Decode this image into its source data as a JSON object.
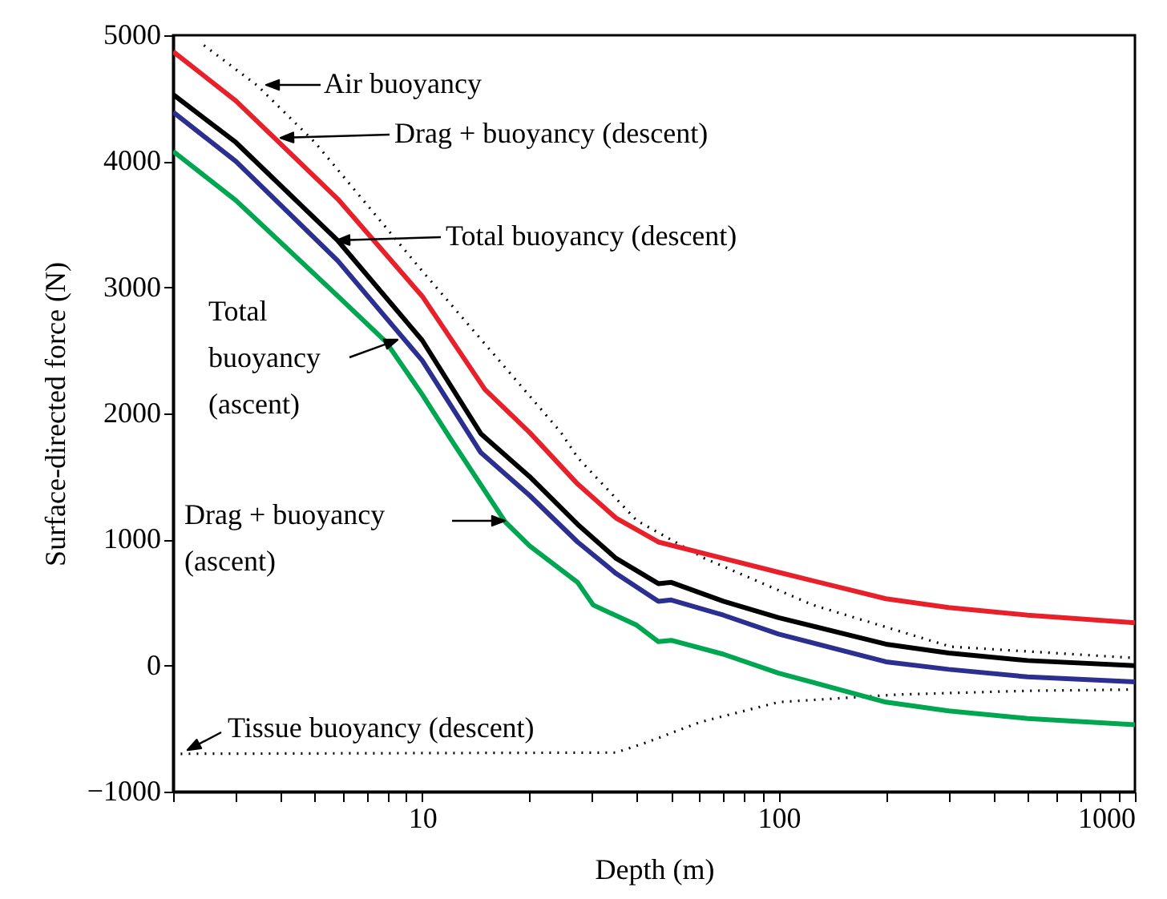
{
  "chart_data": {
    "type": "line",
    "xlabel": "Depth (m)",
    "ylabel": "Surface-directed force (N)",
    "log": "x",
    "xlim": [
      2,
      1000
    ],
    "ylim": [
      -1000,
      5000
    ],
    "xticks": [
      {
        "value": 2,
        "label": null
      },
      {
        "value": 3,
        "label": null
      },
      {
        "value": 4,
        "label": null
      },
      {
        "value": 5,
        "label": null
      },
      {
        "value": 6,
        "label": null
      },
      {
        "value": 7,
        "label": null
      },
      {
        "value": 8,
        "label": null
      },
      {
        "value": 9,
        "label": null
      },
      10,
      {
        "value": 20,
        "label": null
      },
      {
        "value": 30,
        "label": null
      },
      {
        "value": 40,
        "label": null
      },
      {
        "value": 50,
        "label": null
      },
      {
        "value": 60,
        "label": null
      },
      {
        "value": 70,
        "label": null
      },
      {
        "value": 80,
        "label": null
      },
      {
        "value": 90,
        "label": null
      },
      100,
      {
        "value": 200,
        "label": null
      },
      {
        "value": 300,
        "label": null
      },
      {
        "value": 400,
        "label": null
      },
      {
        "value": 500,
        "label": null
      },
      {
        "value": 600,
        "label": null
      },
      {
        "value": 700,
        "label": null
      },
      {
        "value": 800,
        "label": null
      },
      {
        "value": 900,
        "label": null
      },
      1000
    ],
    "yticks": [
      {
        "value": -1000,
        "label": "−1000"
      },
      0,
      1000,
      2000,
      3000,
      4000,
      5000
    ],
    "series": [
      {
        "color": "#000000",
        "line_style": "dotted",
        "x": [
          2.44,
          3.45,
          5,
          10,
          24.5,
          27.3,
          40,
          62,
          125,
          304,
          1000
        ],
        "values": [
          4920,
          4600,
          4150,
          3130,
          1850,
          1650,
          1150,
          850,
          480,
          150,
          60
        ]
      },
      {
        "color": "#000000",
        "line_style": "dotted",
        "x": [
          2.1,
          35,
          42.6,
          60,
          100,
          216,
          500,
          1000
        ],
        "values": [
          -700,
          -690,
          -610,
          -450,
          -290,
          -230,
          -200,
          -190
        ]
      },
      {
        "color": "#e8202a",
        "line_style": "solid",
        "x": [
          2,
          3,
          3.9,
          5.8,
          10,
          15,
          20,
          27.3,
          35,
          46,
          70,
          100,
          200,
          300,
          500,
          1000
        ],
        "values": [
          4870,
          4480,
          4170,
          3700,
          2930,
          2190,
          1850,
          1440,
          1170,
          980,
          850,
          740,
          530,
          460,
          400,
          340
        ]
      },
      {
        "color": "#000000",
        "line_style": "solid",
        "x": [
          2,
          3,
          5.8,
          10,
          14.6,
          20,
          27.3,
          35,
          46,
          50,
          70,
          100,
          200,
          300,
          500,
          1000
        ],
        "values": [
          4530,
          4150,
          3370,
          2580,
          1840,
          1500,
          1120,
          850,
          650,
          660,
          510,
          380,
          170,
          100,
          40,
          0
        ]
      },
      {
        "color": "#2b2f8f",
        "line_style": "solid",
        "x": [
          2,
          3,
          5.8,
          10,
          14.6,
          20,
          27.3,
          35,
          46,
          50,
          70,
          100,
          200,
          300,
          500,
          1000
        ],
        "values": [
          4390,
          4000,
          3210,
          2420,
          1690,
          1350,
          980,
          730,
          510,
          520,
          400,
          250,
          30,
          -30,
          -90,
          -130
        ]
      },
      {
        "color": "#00a650",
        "line_style": "solid",
        "x": [
          2,
          3,
          5.8,
          7.9,
          10,
          12,
          17.1,
          20,
          27.3,
          30.2,
          40,
          46,
          50,
          70,
          100,
          200,
          300,
          500,
          1000
        ],
        "values": [
          4080,
          3690,
          2930,
          2570,
          2150,
          1800,
          1140,
          950,
          660,
          480,
          320,
          190,
          200,
          90,
          -60,
          -290,
          -360,
          -420,
          -470
        ]
      }
    ],
    "annotations": [
      "Air buoyancy",
      "Drag + buoyancy (descent)",
      "Total buoyancy (descent)",
      "Total\nbuoyancy\n(ascent)",
      "Drag + buoyancy\n(ascent)",
      "Tissue buoyancy (descent)"
    ]
  }
}
